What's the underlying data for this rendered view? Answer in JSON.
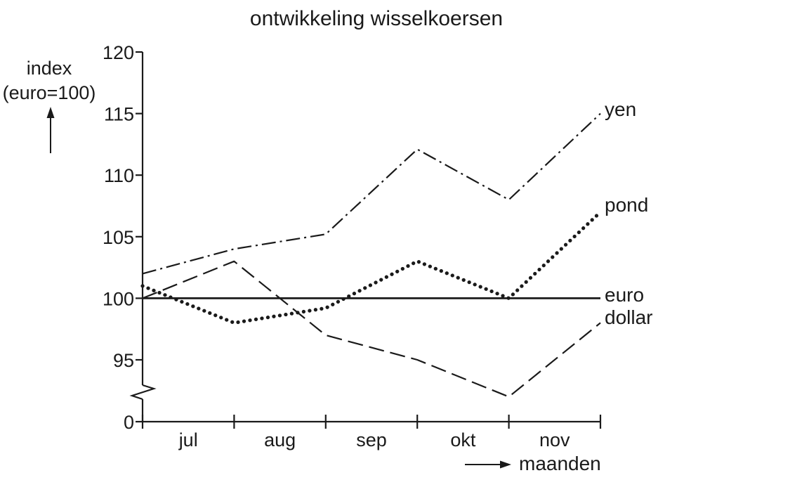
{
  "chart_data": {
    "type": "line",
    "title": "ontwikkeling wisselkoersen",
    "ylabel_line1": "index",
    "ylabel_line2": "(euro=100)",
    "xlabel": "maanden",
    "categories": [
      "jul",
      "aug",
      "sep",
      "okt",
      "nov"
    ],
    "x": [
      0,
      1,
      2,
      3,
      4,
      5
    ],
    "y_ticks": [
      "120",
      "115",
      "110",
      "105",
      "100",
      "95",
      "0"
    ],
    "y_tick_values": [
      120,
      115,
      110,
      105,
      100,
      95,
      90
    ],
    "ylim": [
      90,
      120
    ],
    "axis_break": true,
    "grid": false,
    "legend": "labels at line ends",
    "series": [
      {
        "name": "yen",
        "values": [
          102,
          104,
          105.2,
          112.1,
          108,
          115
        ],
        "style": "dashdot"
      },
      {
        "name": "pond",
        "values": [
          101,
          98,
          99.2,
          103,
          100,
          107
        ],
        "style": "dotted"
      },
      {
        "name": "euro",
        "values": [
          100,
          100,
          100,
          100,
          100,
          100
        ],
        "style": "solid"
      },
      {
        "name": "dollar",
        "values": [
          100,
          103,
          97,
          95,
          92,
          98
        ],
        "style": "dashed"
      }
    ]
  }
}
